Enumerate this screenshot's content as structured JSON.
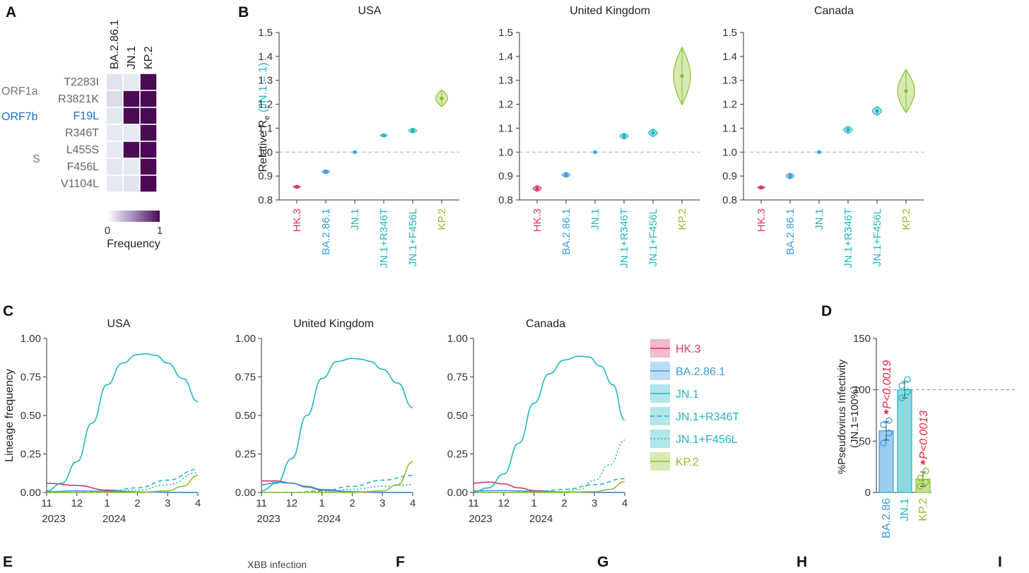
{
  "colors": {
    "HK.3": "#d9336e",
    "BA.2.86.1": "#3a9be0",
    "JN.1": "#1fb6c2",
    "JN.1+R346T": "#1fb6c2",
    "JN.1+F456L": "#1fb6c2",
    "KP.2": "#8cbf2a",
    "BA.2.86": "#3a9be0",
    "heat_high": "#4a0a54",
    "heat_low": "#e8eef5",
    "sig_red": "#e8243c"
  },
  "panels": {
    "A": "A",
    "B": "B",
    "C": "C",
    "D": "D",
    "E": "E",
    "F": "F",
    "G": "G",
    "H": "H",
    "I": "I"
  },
  "chart_data": [
    {
      "type": "heatmap",
      "panel": "A",
      "columns": [
        "BA.2.86.1",
        "JN.1",
        "KP.2"
      ],
      "rows": [
        "T2283I",
        "R3821K",
        "F19L",
        "R346T",
        "L455S",
        "F456L",
        "V1104L"
      ],
      "groups": [
        {
          "label": "ORF1a",
          "rows": [
            "T2283I",
            "R3821K"
          ]
        },
        {
          "label": "ORF7b",
          "rows": [
            "F19L"
          ]
        },
        {
          "label": "S",
          "rows": [
            "R346T",
            "L455S",
            "F456L",
            "V1104L"
          ]
        }
      ],
      "values": [
        [
          0.05,
          0.02,
          1
        ],
        [
          0.08,
          1,
          1
        ],
        [
          0.03,
          1,
          1
        ],
        [
          0.02,
          0.02,
          1
        ],
        [
          0.02,
          1,
          1
        ],
        [
          0.03,
          0.02,
          1
        ],
        [
          0.02,
          0.04,
          1
        ]
      ],
      "colorbar": {
        "min_label": "0",
        "max_label": "1",
        "label": "Frequency"
      }
    },
    {
      "type": "scatter",
      "panel": "B",
      "ylabel": "Relative R",
      "ylabel_sub": "e",
      "ylabel_paren": "(JN.1 = 1)",
      "ylim": [
        0.8,
        1.5
      ],
      "yticks": [
        "0.8",
        "0.9",
        "1.0",
        "1.1",
        "1.2",
        "1.3",
        "1.4",
        "1.5"
      ],
      "reference_line": 1.0,
      "categories": [
        "HK.3",
        "BA.2.86.1",
        "JN.1",
        "JN.1+R346T",
        "JN.1+F456L",
        "KP.2"
      ],
      "subplots": [
        {
          "title": "USA",
          "values": [
            0.855,
            0.918,
            1.0,
            1.07,
            1.09,
            1.225
          ],
          "spread": [
            0.006,
            0.008,
            0,
            0.006,
            0.01,
            0.035
          ]
        },
        {
          "title": "United Kingdom",
          "values": [
            0.848,
            0.905,
            1.0,
            1.067,
            1.08,
            1.318
          ],
          "spread": [
            0.012,
            0.01,
            0,
            0.012,
            0.016,
            0.12
          ]
        },
        {
          "title": "Canada",
          "values": [
            0.852,
            0.9,
            1.0,
            1.093,
            1.172,
            1.255
          ],
          "spread": [
            0.006,
            0.012,
            0,
            0.015,
            0.018,
            0.09
          ]
        }
      ]
    },
    {
      "type": "line",
      "panel": "C",
      "ylabel": "Lineage frequency",
      "ylim": [
        0,
        1
      ],
      "yticks": [
        "0.00",
        "0.25",
        "0.50",
        "0.75",
        "1.00"
      ],
      "xticks": [
        {
          "x": 11,
          "label": "11"
        },
        {
          "x": 12,
          "label": "12"
        },
        {
          "x": 13,
          "label": "1"
        },
        {
          "x": 14,
          "label": "2"
        },
        {
          "x": 15,
          "label": "3"
        },
        {
          "x": 16,
          "label": "4"
        }
      ],
      "year_labels": [
        {
          "x": 11,
          "label": "2023"
        },
        {
          "x": 13,
          "label": "2024"
        }
      ],
      "legend": [
        "HK.3",
        "BA.2.86.1",
        "JN.1",
        "JN.1+R346T",
        "JN.1+F456L",
        "KP.2"
      ],
      "subplots": [
        {
          "title": "USA",
          "series": [
            {
              "name": "HK.3",
              "style": "solid",
              "x": [
                11,
                12,
                13,
                14,
                15,
                16
              ],
              "y": [
                0.06,
                0.045,
                0.015,
                0.003,
                0.001,
                0.0
              ]
            },
            {
              "name": "BA.2.86.1",
              "style": "solid",
              "x": [
                11,
                12,
                13,
                14,
                15,
                16
              ],
              "y": [
                0.005,
                0.01,
                0.008,
                0.003,
                0.001,
                0.0
              ]
            },
            {
              "name": "JN.1",
              "style": "solid",
              "x": [
                11,
                11.5,
                12,
                12.5,
                13,
                13.5,
                14,
                14.3,
                14.6,
                15,
                15.5,
                16
              ],
              "y": [
                0.01,
                0.06,
                0.2,
                0.45,
                0.7,
                0.84,
                0.895,
                0.9,
                0.89,
                0.84,
                0.74,
                0.59
              ]
            },
            {
              "name": "JN.1+R346T",
              "style": "dashed",
              "x": [
                11,
                12,
                13,
                14,
                15,
                16
              ],
              "y": [
                0.0,
                0.0,
                0.005,
                0.03,
                0.08,
                0.15
              ]
            },
            {
              "name": "JN.1+F456L",
              "style": "dotted",
              "x": [
                11,
                12,
                13,
                14,
                15,
                16
              ],
              "y": [
                0.0,
                0.0,
                0.002,
                0.015,
                0.05,
                0.13
              ]
            },
            {
              "name": "KP.2",
              "style": "solid",
              "x": [
                11,
                12,
                13,
                14,
                15,
                15.5,
                16
              ],
              "y": [
                0.0,
                0.0,
                0.0,
                0.0,
                0.01,
                0.04,
                0.11
              ]
            }
          ]
        },
        {
          "title": "United Kingdom",
          "series": [
            {
              "name": "HK.3",
              "style": "solid",
              "x": [
                11,
                11.5,
                12,
                12.5,
                13,
                14,
                15,
                16
              ],
              "y": [
                0.075,
                0.075,
                0.06,
                0.035,
                0.015,
                0.003,
                0.0,
                0.0
              ]
            },
            {
              "name": "BA.2.86.1",
              "style": "solid",
              "x": [
                11,
                11.5,
                12,
                12.5,
                13,
                14,
                15,
                16
              ],
              "y": [
                0.05,
                0.065,
                0.06,
                0.04,
                0.02,
                0.005,
                0.001,
                0.0
              ]
            },
            {
              "name": "JN.1",
              "style": "solid",
              "x": [
                11,
                11.5,
                12,
                12.5,
                13,
                13.5,
                14,
                14.3,
                14.6,
                15,
                15.5,
                16
              ],
              "y": [
                0.01,
                0.06,
                0.22,
                0.5,
                0.74,
                0.85,
                0.87,
                0.865,
                0.85,
                0.8,
                0.71,
                0.55
              ]
            },
            {
              "name": "JN.1+R346T",
              "style": "dashed",
              "x": [
                11,
                12,
                13,
                14,
                15,
                16
              ],
              "y": [
                0.0,
                0.0,
                0.01,
                0.04,
                0.08,
                0.11
              ]
            },
            {
              "name": "JN.1+F456L",
              "style": "dotted",
              "x": [
                11,
                12,
                13,
                14,
                15,
                16
              ],
              "y": [
                0.0,
                0.0,
                0.004,
                0.02,
                0.04,
                0.05
              ]
            },
            {
              "name": "KP.2",
              "style": "solid",
              "x": [
                11,
                12,
                13,
                14,
                15,
                15.5,
                16
              ],
              "y": [
                0.0,
                0.0,
                0.0,
                0.0,
                0.01,
                0.05,
                0.2
              ]
            }
          ]
        },
        {
          "title": "Canada",
          "series": [
            {
              "name": "HK.3",
              "style": "solid",
              "x": [
                11,
                11.5,
                12,
                12.5,
                13,
                14,
                15,
                16
              ],
              "y": [
                0.06,
                0.068,
                0.055,
                0.03,
                0.012,
                0.002,
                0.0,
                0.0
              ]
            },
            {
              "name": "BA.2.86.1",
              "style": "solid",
              "x": [
                11,
                12,
                13,
                14,
                15,
                16
              ],
              "y": [
                0.01,
                0.012,
                0.008,
                0.003,
                0.001,
                0.0
              ]
            },
            {
              "name": "JN.1",
              "style": "solid",
              "x": [
                11,
                11.5,
                12,
                12.5,
                13,
                13.5,
                14,
                14.5,
                14.8,
                15.2,
                15.6,
                16
              ],
              "y": [
                0.005,
                0.03,
                0.12,
                0.32,
                0.58,
                0.77,
                0.86,
                0.885,
                0.88,
                0.82,
                0.7,
                0.47
              ]
            },
            {
              "name": "JN.1+R346T",
              "style": "dashed",
              "x": [
                11,
                12,
                13,
                14,
                15,
                16
              ],
              "y": [
                0.0,
                0.0,
                0.004,
                0.02,
                0.05,
                0.09
              ]
            },
            {
              "name": "JN.1+F456L",
              "style": "dotted",
              "x": [
                11,
                12,
                13,
                14,
                14.5,
                15,
                15.5,
                16
              ],
              "y": [
                0.0,
                0.0,
                0.0,
                0.005,
                0.02,
                0.08,
                0.18,
                0.34
              ]
            },
            {
              "name": "KP.2",
              "style": "solid",
              "x": [
                11,
                12,
                13,
                14,
                15,
                15.5,
                16
              ],
              "y": [
                0.0,
                0.0,
                0.0,
                0.0,
                0.005,
                0.02,
                0.07
              ]
            }
          ]
        }
      ]
    },
    {
      "type": "bar",
      "panel": "D",
      "ylabel": "%Pseudovirus Infectivity",
      "ylabel_paren": "(JN.1=100%)",
      "ylim": [
        0,
        150
      ],
      "yticks": [
        "0",
        "50",
        "100",
        "150"
      ],
      "reference_line": 100,
      "categories": [
        "BA.2.86",
        "JN.1",
        "KP.2"
      ],
      "values": [
        60,
        100,
        13
      ],
      "errors": [
        9,
        8,
        7
      ],
      "points": [
        [
          48,
          58,
          66,
          70
        ],
        [
          92,
          98,
          104,
          110
        ],
        [
          6,
          10,
          14,
          21
        ]
      ],
      "significance": [
        "*",
        "",
        "*"
      ],
      "pvalues": [
        "P<0.0019",
        "",
        "P<0.0013"
      ]
    }
  ],
  "bottom_fragment": "XBB infection"
}
